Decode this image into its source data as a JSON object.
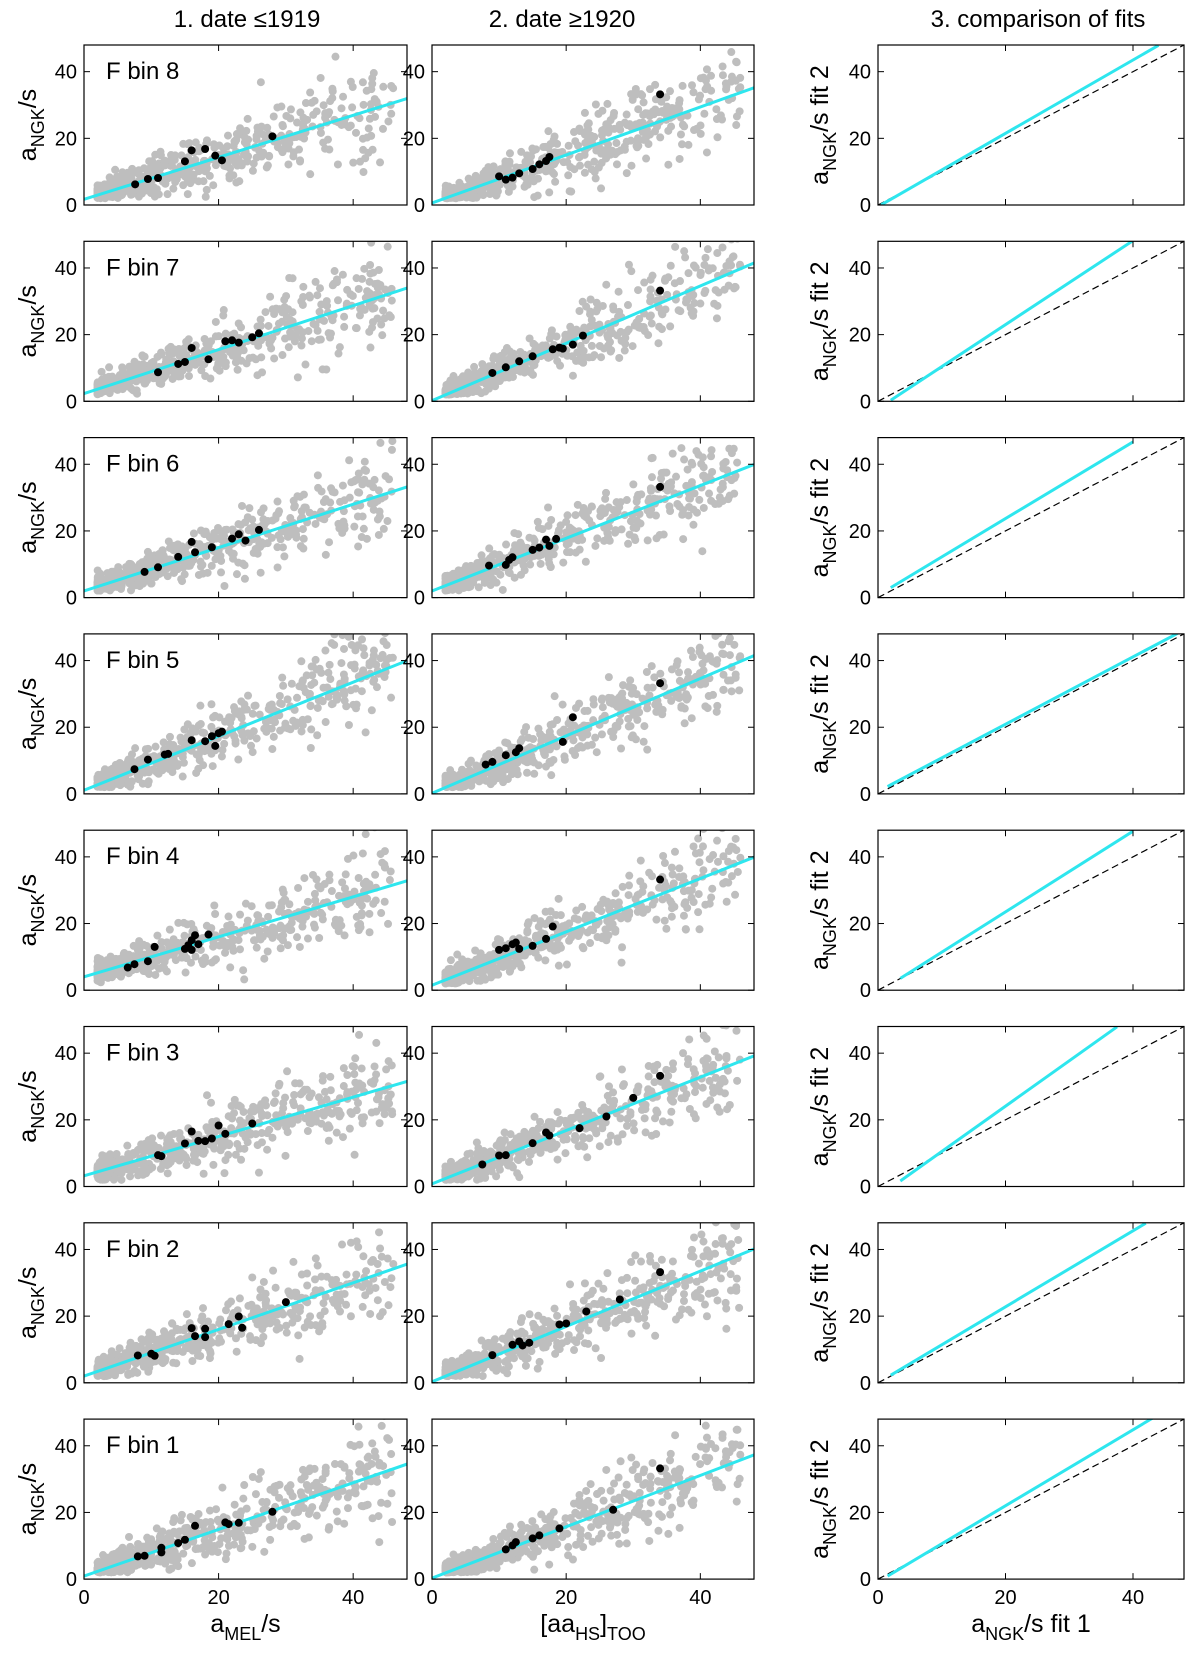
{
  "figure": {
    "column_titles": [
      "1. date ≤1919",
      "2. date ≥1920",
      "3. comparison of fits"
    ],
    "panel_labels": [
      "F bin 8",
      "F bin 7",
      "F bin 6",
      "F bin 5",
      "F bin 4",
      "F bin 3",
      "F bin 2",
      "F bin 1"
    ],
    "ylabel_left": {
      "main": "a",
      "sub": "NGK",
      "tail": "/s"
    },
    "ylabel_right": {
      "main": "a",
      "sub": "NGK",
      "tail": "/s fit 2"
    },
    "xlabels": [
      {
        "pre": "a",
        "sub": "MEL",
        "post": "/s"
      },
      {
        "pre": "[aa",
        "sub": "HS",
        "post": "]",
        "sub2": "TOO"
      },
      {
        "pre": "a",
        "sub": "NGK",
        "post": "/s fit 1"
      }
    ],
    "colors": {
      "scatter": "#bebebe",
      "bin_means": "#000000",
      "fit_line": "#2ee6ee",
      "identity_line": "#000000",
      "axes": "#000000"
    }
  },
  "chart_data": [
    {
      "type": "scatter",
      "panel_set": "column 1 (date ≤1919)",
      "xlim": [
        0,
        48
      ],
      "ylim": [
        0,
        48
      ],
      "xticks": [
        0,
        20,
        40
      ],
      "yticks": [
        0,
        20,
        40
      ],
      "grid": false,
      "rows": [
        {
          "label": "F bin 8",
          "fit": {
            "intercept": 1.7,
            "slope": 0.63
          },
          "means": [
            [
              7.6,
              6.2
            ],
            [
              9.5,
              7.8
            ],
            [
              11,
              8.1
            ],
            [
              15,
              13.1
            ],
            [
              16,
              16.4
            ],
            [
              18,
              16.8
            ],
            [
              19.5,
              14.8
            ],
            [
              20.5,
              13.4
            ],
            [
              28,
              20.6
            ]
          ]
        },
        {
          "label": "F bin 7",
          "fit": {
            "intercept": 2.3,
            "slope": 0.66
          },
          "means": [
            [
              11,
              8.7
            ],
            [
              14,
              11.2
            ],
            [
              15,
              11.8
            ],
            [
              16,
              16
            ],
            [
              18.5,
              12.6
            ],
            [
              21,
              18
            ],
            [
              22,
              18.3
            ],
            [
              23,
              17.6
            ],
            [
              25,
              19.2
            ],
            [
              26,
              20.4
            ]
          ]
        },
        {
          "label": "F bin 6",
          "fit": {
            "intercept": 2.0,
            "slope": 0.65
          },
          "means": [
            [
              9,
              7.7
            ],
            [
              11,
              9.1
            ],
            [
              14,
              12.2
            ],
            [
              16,
              16.7
            ],
            [
              16.5,
              13.6
            ],
            [
              19,
              15.1
            ],
            [
              22,
              17.7
            ],
            [
              23,
              19
            ],
            [
              24,
              17.1
            ],
            [
              26,
              20.3
            ]
          ]
        },
        {
          "label": "F bin 5",
          "fit": {
            "intercept": 1.1,
            "slope": 0.81
          },
          "means": [
            [
              7.5,
              7.4
            ],
            [
              9.5,
              10.3
            ],
            [
              12,
              11.8
            ],
            [
              12.5,
              12
            ],
            [
              16,
              16.1
            ],
            [
              18,
              15.8
            ],
            [
              19,
              17.3
            ],
            [
              19.5,
              14.4
            ],
            [
              20,
              18.2
            ],
            [
              20.5,
              18.7
            ]
          ]
        },
        {
          "label": "F bin 4",
          "fit": {
            "intercept": 4.0,
            "slope": 0.6
          },
          "means": [
            [
              6.5,
              6.8
            ],
            [
              7.5,
              7.8
            ],
            [
              9.5,
              8.7
            ],
            [
              10.5,
              13
            ],
            [
              15,
              12.4
            ],
            [
              15.5,
              13.5
            ],
            [
              16,
              15
            ],
            [
              16,
              12.1
            ],
            [
              16.5,
              16.5
            ],
            [
              17,
              13.8
            ],
            [
              18.5,
              16.7
            ]
          ]
        },
        {
          "label": "F bin 3",
          "fit": {
            "intercept": 3.2,
            "slope": 0.59
          },
          "means": [
            [
              11,
              9.4
            ],
            [
              11.5,
              9.1
            ],
            [
              15,
              12.9
            ],
            [
              16,
              16.5
            ],
            [
              17,
              13.7
            ],
            [
              18,
              13.6
            ],
            [
              19,
              14.4
            ],
            [
              20,
              18.3
            ],
            [
              21,
              15.8
            ],
            [
              25,
              18.9
            ]
          ]
        },
        {
          "label": "F bin 2",
          "fit": {
            "intercept": 2.0,
            "slope": 0.7
          },
          "means": [
            [
              8,
              8.2
            ],
            [
              10,
              8.7
            ],
            [
              10.5,
              8.1
            ],
            [
              16,
              16.4
            ],
            [
              16.5,
              14
            ],
            [
              18,
              13.7
            ],
            [
              18,
              16.2
            ],
            [
              21.5,
              17.6
            ],
            [
              23,
              19.9
            ],
            [
              23.5,
              16.5
            ],
            [
              30,
              24.2
            ]
          ]
        },
        {
          "label": "F bin 1",
          "fit": {
            "intercept": 0.9,
            "slope": 0.7
          },
          "means": [
            [
              8,
              6.8
            ],
            [
              9,
              7
            ],
            [
              11.5,
              8
            ],
            [
              11.5,
              9.4
            ],
            [
              14,
              10.8
            ],
            [
              15,
              11.8
            ],
            [
              16.5,
              16
            ],
            [
              21,
              17
            ],
            [
              21.5,
              16.5
            ],
            [
              23,
              16.9
            ],
            [
              28,
              20.2
            ]
          ]
        }
      ]
    },
    {
      "type": "scatter",
      "panel_set": "column 2 (date ≥1920)",
      "xlim": [
        0,
        48
      ],
      "ylim": [
        0,
        48
      ],
      "xticks": [
        0,
        20,
        40
      ],
      "yticks": [
        0,
        20,
        40
      ],
      "grid": false,
      "rows": [
        {
          "label": "F bin 8",
          "fit": {
            "intercept": 0.6,
            "slope": 0.72
          },
          "means": [
            [
              10,
              8.6
            ],
            [
              11,
              7.6
            ],
            [
              12,
              8.2
            ],
            [
              13,
              9.5
            ],
            [
              15,
              10.8
            ],
            [
              16,
              12.2
            ],
            [
              17,
              13.2
            ],
            [
              17.5,
              14.4
            ],
            [
              34,
              33.2
            ]
          ]
        },
        {
          "label": "F bin 7",
          "fit": {
            "intercept": 0.2,
            "slope": 0.86
          },
          "means": [
            [
              9,
              8.5
            ],
            [
              11,
              10.2
            ],
            [
              13,
              12
            ],
            [
              15,
              13.5
            ],
            [
              18,
              15.6
            ],
            [
              19,
              16.1
            ],
            [
              19.5,
              15.8
            ],
            [
              21,
              17
            ],
            [
              22.5,
              19.7
            ],
            [
              34,
              33.2
            ]
          ]
        },
        {
          "label": "F bin 6",
          "fit": {
            "intercept": 2.0,
            "slope": 0.79
          },
          "means": [
            [
              8.5,
              9.6
            ],
            [
              11,
              9.8
            ],
            [
              11.5,
              11.3
            ],
            [
              12,
              12.1
            ],
            [
              15,
              14.3
            ],
            [
              16,
              15
            ],
            [
              17,
              17.4
            ],
            [
              17.5,
              15.5
            ],
            [
              18.5,
              17.6
            ],
            [
              34,
              33.2
            ]
          ]
        },
        {
          "label": "F bin 5",
          "fit": {
            "intercept": 0.2,
            "slope": 0.86
          },
          "means": [
            [
              8,
              8.8
            ],
            [
              9,
              9.6
            ],
            [
              11,
              11.6
            ],
            [
              12.5,
              12.5
            ],
            [
              13,
              13.7
            ],
            [
              19.5,
              15.6
            ],
            [
              21,
              23
            ],
            [
              34,
              33.2
            ]
          ]
        },
        {
          "label": "F bin 4",
          "fit": {
            "intercept": 1.5,
            "slope": 0.8
          },
          "means": [
            [
              10,
              12.1
            ],
            [
              11,
              12.6
            ],
            [
              12,
              13.8
            ],
            [
              12.5,
              14.3
            ],
            [
              13,
              12.4
            ],
            [
              15,
              13.3
            ],
            [
              17,
              15.4
            ],
            [
              18,
              19.1
            ],
            [
              34,
              33.2
            ]
          ]
        },
        {
          "label": "F bin 3",
          "fit": {
            "intercept": 0.8,
            "slope": 0.8
          },
          "means": [
            [
              7.5,
              6.6
            ],
            [
              10,
              9.3
            ],
            [
              11,
              9.4
            ],
            [
              15,
              13
            ],
            [
              17,
              16.2
            ],
            [
              17.5,
              15.3
            ],
            [
              22,
              17.5
            ],
            [
              26,
              21
            ],
            [
              30,
              26.6
            ],
            [
              34,
              33.2
            ]
          ]
        },
        {
          "label": "F bin 2",
          "fit": {
            "intercept": 0.3,
            "slope": 0.83
          },
          "means": [
            [
              9,
              8.3
            ],
            [
              12,
              11.4
            ],
            [
              13,
              12.4
            ],
            [
              13.5,
              11.2
            ],
            [
              14.5,
              12
            ],
            [
              19,
              17.5
            ],
            [
              20,
              17.8
            ],
            [
              23,
              21.4
            ],
            [
              28,
              25
            ],
            [
              34,
              33.2
            ]
          ]
        },
        {
          "label": "F bin 1",
          "fit": {
            "intercept": 0.3,
            "slope": 0.77
          },
          "means": [
            [
              11,
              8.9
            ],
            [
              12,
              10.1
            ],
            [
              12.5,
              11.1
            ],
            [
              15,
              12.2
            ],
            [
              16,
              13.1
            ],
            [
              19,
              15.2
            ],
            [
              27,
              20.8
            ],
            [
              34,
              33.2
            ]
          ]
        }
      ]
    },
    {
      "type": "line",
      "panel_set": "column 3 (comparison of fits)",
      "xlim": [
        0,
        48
      ],
      "ylim": [
        0,
        48
      ],
      "xticks": [
        0,
        20,
        40
      ],
      "yticks": [
        0,
        20,
        40
      ],
      "grid": false,
      "series_style": {
        "fit": "solid cyan",
        "identity": "dashed black y = x"
      },
      "rows": [
        {
          "label": "F bin 8",
          "x_range": [
            0.5,
            44
          ],
          "fit": {
            "intercept": -0.5,
            "slope": 1.1
          }
        },
        {
          "label": "F bin 7",
          "x_range": [
            2,
            40
          ],
          "fit": {
            "intercept": -2.2,
            "slope": 1.26
          }
        },
        {
          "label": "F bin 6",
          "x_range": [
            2,
            40
          ],
          "fit": {
            "intercept": 0.7,
            "slope": 1.15
          }
        },
        {
          "label": "F bin 5",
          "x_range": [
            1.5,
            47
          ],
          "fit": {
            "intercept": 0.7,
            "slope": 1.01
          }
        },
        {
          "label": "F bin 4",
          "x_range": [
            3.5,
            40
          ],
          "fit": {
            "intercept": -0.7,
            "slope": 1.21
          }
        },
        {
          "label": "F bin 3",
          "x_range": [
            3.5,
            37.5
          ],
          "fit": {
            "intercept": -3.1,
            "slope": 1.36
          }
        },
        {
          "label": "F bin 2",
          "x_range": [
            2,
            42
          ],
          "fit": {
            "intercept": 0,
            "slope": 1.14
          }
        },
        {
          "label": "F bin 1",
          "x_range": [
            1.5,
            43
          ],
          "fit": {
            "intercept": -0.8,
            "slope": 1.14
          }
        }
      ]
    }
  ]
}
